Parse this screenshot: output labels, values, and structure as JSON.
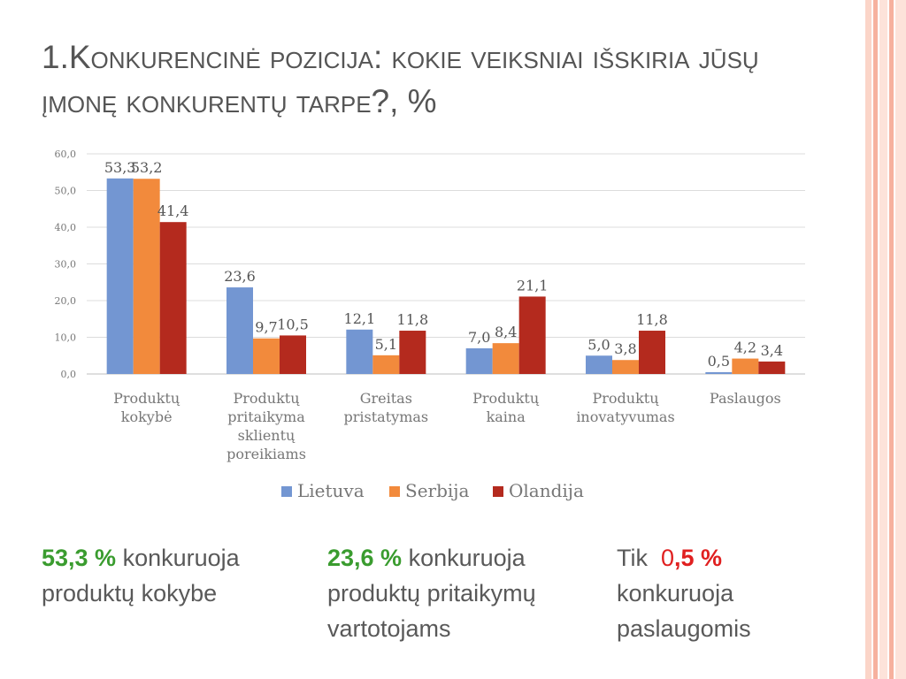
{
  "title": {
    "line1": "1.Konkurencinė pozicija: kokie veiksniai išskiria jūsų",
    "line2": "įmonę konkurentų tarpe?, %"
  },
  "colors": {
    "stripe_light": "#fde3da",
    "stripe_mid": "#f6b19e",
    "title_text": "#555555",
    "green_highlight": "#3a9c2f",
    "red_highlight": "#e02020"
  },
  "chart_data": {
    "type": "bar",
    "categories": [
      [
        "Produktų",
        "kokybė"
      ],
      [
        "Produktų",
        "pritaikyma",
        "sklientų",
        "poreikiams"
      ],
      [
        "Greitas",
        "pristatymas"
      ],
      [
        "Produktų",
        "kaina"
      ],
      [
        "Produktų",
        "inovatyvumas"
      ],
      [
        "Paslaugos"
      ]
    ],
    "series": [
      {
        "name": "Lietuva",
        "color": "#7396d2",
        "values": [
          53.3,
          23.6,
          12.1,
          7.0,
          5.0,
          0.5
        ],
        "labels": [
          "53,3",
          "23,6",
          "12,1",
          "7,0",
          "5,0",
          "0,5"
        ]
      },
      {
        "name": "Serbija",
        "color": "#f28a3c",
        "values": [
          53.2,
          9.7,
          5.1,
          8.4,
          3.8,
          4.2
        ],
        "labels": [
          "53,2",
          "9,7",
          "5,1",
          "8,4",
          "3,8",
          "4,2"
        ]
      },
      {
        "name": "Olandija",
        "color": "#b42a1e",
        "values": [
          41.4,
          10.5,
          11.8,
          21.1,
          11.8,
          3.4
        ],
        "labels": [
          "41,4",
          "10,5",
          "11,8",
          "21,1",
          "11,8",
          "3,4"
        ]
      }
    ],
    "ylim": [
      0,
      60
    ],
    "yticks": [
      "0,0",
      "10,0",
      "20,0",
      "30,0",
      "40,0",
      "50,0",
      "60,0"
    ],
    "grid": true,
    "legend_position": "bottom"
  },
  "captions": {
    "c1": {
      "pct": "53,3 %",
      "line1_rest": " konkuruoja",
      "line2": "produktų kokybe"
    },
    "c2": {
      "pct": "23,6 %",
      "line1_rest": " konkuruoja",
      "line2": "produktų pritaikymų",
      "line3": "vartotojams"
    },
    "c3": {
      "prefix": "Tik  ",
      "pct_zero": "0",
      "pct_rest": ",5 %",
      "line2": "konkuruoja",
      "line3": "paslaugomis"
    }
  }
}
